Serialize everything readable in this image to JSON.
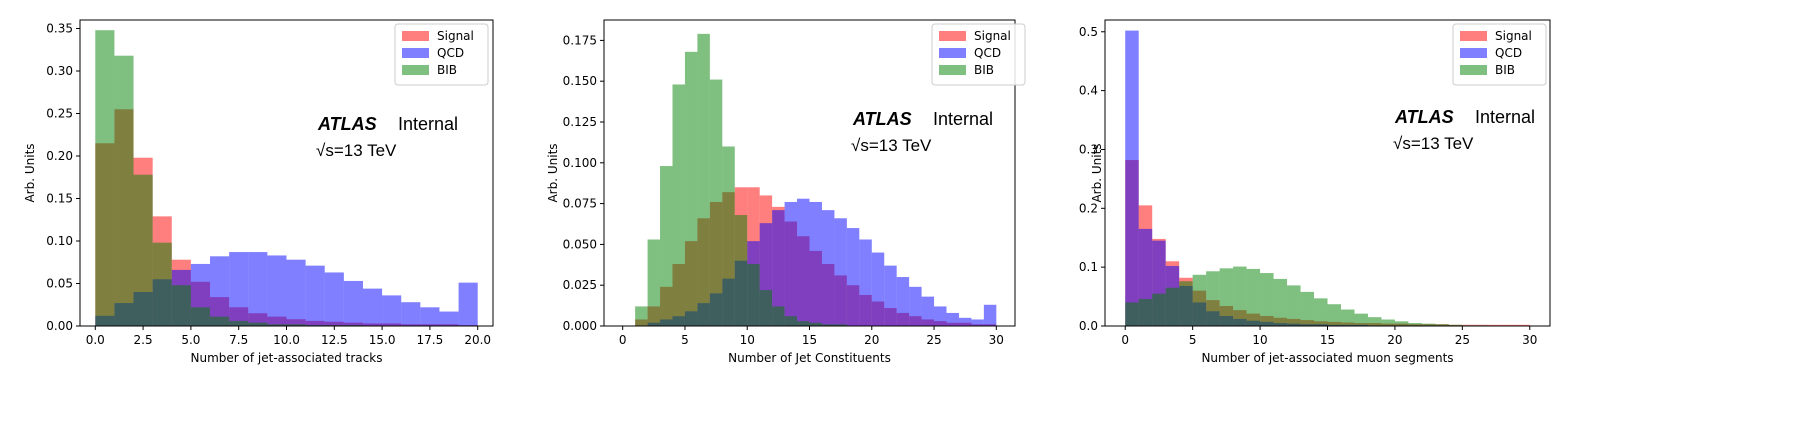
{
  "chart_data": [
    {
      "type": "bar",
      "xlabel": "Number of jet-associated tracks",
      "ylabel": "Arb. Units",
      "xlim": [
        -0.8,
        20.8
      ],
      "ylim": [
        0,
        0.36
      ],
      "xticks": [
        0.0,
        2.5,
        5.0,
        7.5,
        10.0,
        12.5,
        15.0,
        17.5,
        20.0
      ],
      "xtick_labels": [
        "0.0",
        "2.5",
        "5.0",
        "7.5",
        "10.0",
        "12.5",
        "15.0",
        "17.5",
        "20.0"
      ],
      "yticks": [
        0.0,
        0.05,
        0.1,
        0.15,
        0.2,
        0.25,
        0.3,
        0.35
      ],
      "ytick_labels": [
        "0.00",
        "0.05",
        "0.10",
        "0.15",
        "0.20",
        "0.25",
        "0.30",
        "0.35"
      ],
      "bin_edges": [
        0.0,
        1.0,
        2.0,
        3.0,
        4.0,
        5.0,
        6.0,
        7.0,
        8.0,
        9.0,
        10.0,
        11.0,
        12.0,
        13.0,
        14.0,
        15.0,
        16.0,
        17.0,
        18.0,
        19.0,
        20.0
      ],
      "legend": {
        "position": "top-right",
        "entries": [
          "Signal",
          "QCD",
          "BIB"
        ]
      },
      "annotation": {
        "atlas": "ATLAS",
        "status": "Internal",
        "energy": "√s=13 TeV"
      },
      "series": [
        {
          "name": "Signal",
          "color": "#ff0000",
          "values": [
            0.215,
            0.255,
            0.198,
            0.129,
            0.078,
            0.052,
            0.034,
            0.022,
            0.015,
            0.011,
            0.008,
            0.006,
            0.005,
            0.004,
            0.003,
            0.003,
            0.002,
            0.002,
            0.002,
            0.001
          ]
        },
        {
          "name": "QCD",
          "color": "#0000ff",
          "values": [
            0.012,
            0.027,
            0.04,
            0.055,
            0.066,
            0.073,
            0.082,
            0.087,
            0.087,
            0.083,
            0.078,
            0.071,
            0.063,
            0.053,
            0.044,
            0.036,
            0.028,
            0.022,
            0.017,
            0.051
          ]
        },
        {
          "name": "BIB",
          "color": "#008000",
          "values": [
            0.348,
            0.318,
            0.178,
            0.098,
            0.048,
            0.022,
            0.011,
            0.006,
            0.004,
            0.002,
            0.002,
            0.001,
            0.001,
            0.001,
            0.0,
            0.0,
            0.0,
            0.0,
            0.0,
            0.0
          ]
        }
      ]
    },
    {
      "type": "bar",
      "xlabel": "Number of Jet Constituents",
      "ylabel": "Arb. Units",
      "xlim": [
        -1.5,
        31.5
      ],
      "ylim": [
        0,
        0.1875
      ],
      "xticks": [
        0,
        5,
        10,
        15,
        20,
        25,
        30
      ],
      "xtick_labels": [
        "0",
        "5",
        "10",
        "15",
        "20",
        "25",
        "30"
      ],
      "yticks": [
        0.0,
        0.025,
        0.05,
        0.075,
        0.1,
        0.125,
        0.15,
        0.175
      ],
      "ytick_labels": [
        "0.000",
        "0.025",
        "0.050",
        "0.075",
        "0.100",
        "0.125",
        "0.150",
        "0.175"
      ],
      "bin_edges": [
        1,
        2,
        3,
        4,
        5,
        6,
        7,
        8,
        9,
        10,
        11,
        12,
        13,
        14,
        15,
        16,
        17,
        18,
        19,
        20,
        21,
        22,
        23,
        24,
        25,
        26,
        27,
        28,
        29,
        30
      ],
      "legend": {
        "position": "top-right",
        "entries": [
          "Signal",
          "QCD",
          "BIB"
        ]
      },
      "annotation": {
        "atlas": "ATLAS",
        "status": "Internal",
        "energy": "√s=13 TeV"
      },
      "series": [
        {
          "name": "Signal",
          "color": "#ff0000",
          "values": [
            0.004,
            0.012,
            0.024,
            0.038,
            0.052,
            0.066,
            0.076,
            0.082,
            0.085,
            0.085,
            0.08,
            0.073,
            0.064,
            0.055,
            0.046,
            0.038,
            0.031,
            0.025,
            0.019,
            0.015,
            0.011,
            0.008,
            0.006,
            0.004,
            0.003,
            0.002,
            0.002,
            0.001,
            0.001
          ]
        },
        {
          "name": "QCD",
          "color": "#0000ff",
          "values": [
            0.0,
            0.002,
            0.004,
            0.006,
            0.009,
            0.014,
            0.02,
            0.029,
            0.04,
            0.052,
            0.063,
            0.071,
            0.076,
            0.078,
            0.076,
            0.071,
            0.066,
            0.06,
            0.053,
            0.045,
            0.037,
            0.03,
            0.024,
            0.018,
            0.012,
            0.008,
            0.005,
            0.004,
            0.013
          ]
        },
        {
          "name": "BIB",
          "color": "#008000",
          "values": [
            0.012,
            0.053,
            0.098,
            0.148,
            0.168,
            0.179,
            0.151,
            0.11,
            0.068,
            0.038,
            0.022,
            0.012,
            0.006,
            0.003,
            0.002,
            0.001,
            0.001,
            0.0,
            0.0,
            0.0,
            0.0,
            0.0,
            0.0,
            0.0,
            0.0,
            0.0,
            0.0,
            0.0,
            0.0
          ]
        }
      ]
    },
    {
      "type": "bar",
      "xlabel": "Number of jet-associated muon segments",
      "ylabel": "Arb. Units",
      "xlim": [
        -1.5,
        31.5
      ],
      "ylim": [
        0,
        0.52
      ],
      "xticks": [
        0,
        5,
        10,
        15,
        20,
        25,
        30
      ],
      "xtick_labels": [
        "0",
        "5",
        "10",
        "15",
        "20",
        "25",
        "30"
      ],
      "yticks": [
        0.0,
        0.1,
        0.2,
        0.3,
        0.4,
        0.5
      ],
      "ytick_labels": [
        "0.0",
        "0.1",
        "0.2",
        "0.3",
        "0.4",
        "0.5"
      ],
      "bin_edges": [
        0,
        1,
        2,
        3,
        4,
        5,
        6,
        7,
        8,
        9,
        10,
        11,
        12,
        13,
        14,
        15,
        16,
        17,
        18,
        19,
        20,
        21,
        22,
        23,
        24,
        25,
        26,
        27,
        28,
        29,
        30
      ],
      "legend": {
        "position": "top-right",
        "entries": [
          "Signal",
          "QCD",
          "BIB"
        ]
      },
      "annotation": {
        "atlas": "ATLAS",
        "status": "Internal",
        "energy": "√s=13 TeV"
      },
      "series": [
        {
          "name": "Signal",
          "color": "#ff0000",
          "values": [
            0.282,
            0.205,
            0.148,
            0.11,
            0.082,
            0.06,
            0.044,
            0.034,
            0.027,
            0.021,
            0.017,
            0.014,
            0.012,
            0.01,
            0.008,
            0.007,
            0.006,
            0.005,
            0.005,
            0.004,
            0.004,
            0.003,
            0.003,
            0.003,
            0.002,
            0.002,
            0.002,
            0.002,
            0.002,
            0.002
          ]
        },
        {
          "name": "QCD",
          "color": "#0000ff",
          "values": [
            0.502,
            0.165,
            0.145,
            0.102,
            0.068,
            0.04,
            0.025,
            0.017,
            0.012,
            0.009,
            0.007,
            0.005,
            0.004,
            0.003,
            0.003,
            0.002,
            0.002,
            0.002,
            0.001,
            0.001,
            0.001,
            0.001,
            0.001,
            0.001,
            0.0,
            0.0,
            0.0,
            0.0,
            0.0,
            0.0
          ]
        },
        {
          "name": "BIB",
          "color": "#008000",
          "values": [
            0.04,
            0.046,
            0.055,
            0.065,
            0.076,
            0.087,
            0.093,
            0.098,
            0.101,
            0.097,
            0.09,
            0.08,
            0.069,
            0.058,
            0.047,
            0.037,
            0.028,
            0.021,
            0.015,
            0.011,
            0.008,
            0.005,
            0.004,
            0.003,
            0.002,
            0.001,
            0.001,
            0.0,
            0.0,
            0.0
          ]
        }
      ]
    }
  ]
}
